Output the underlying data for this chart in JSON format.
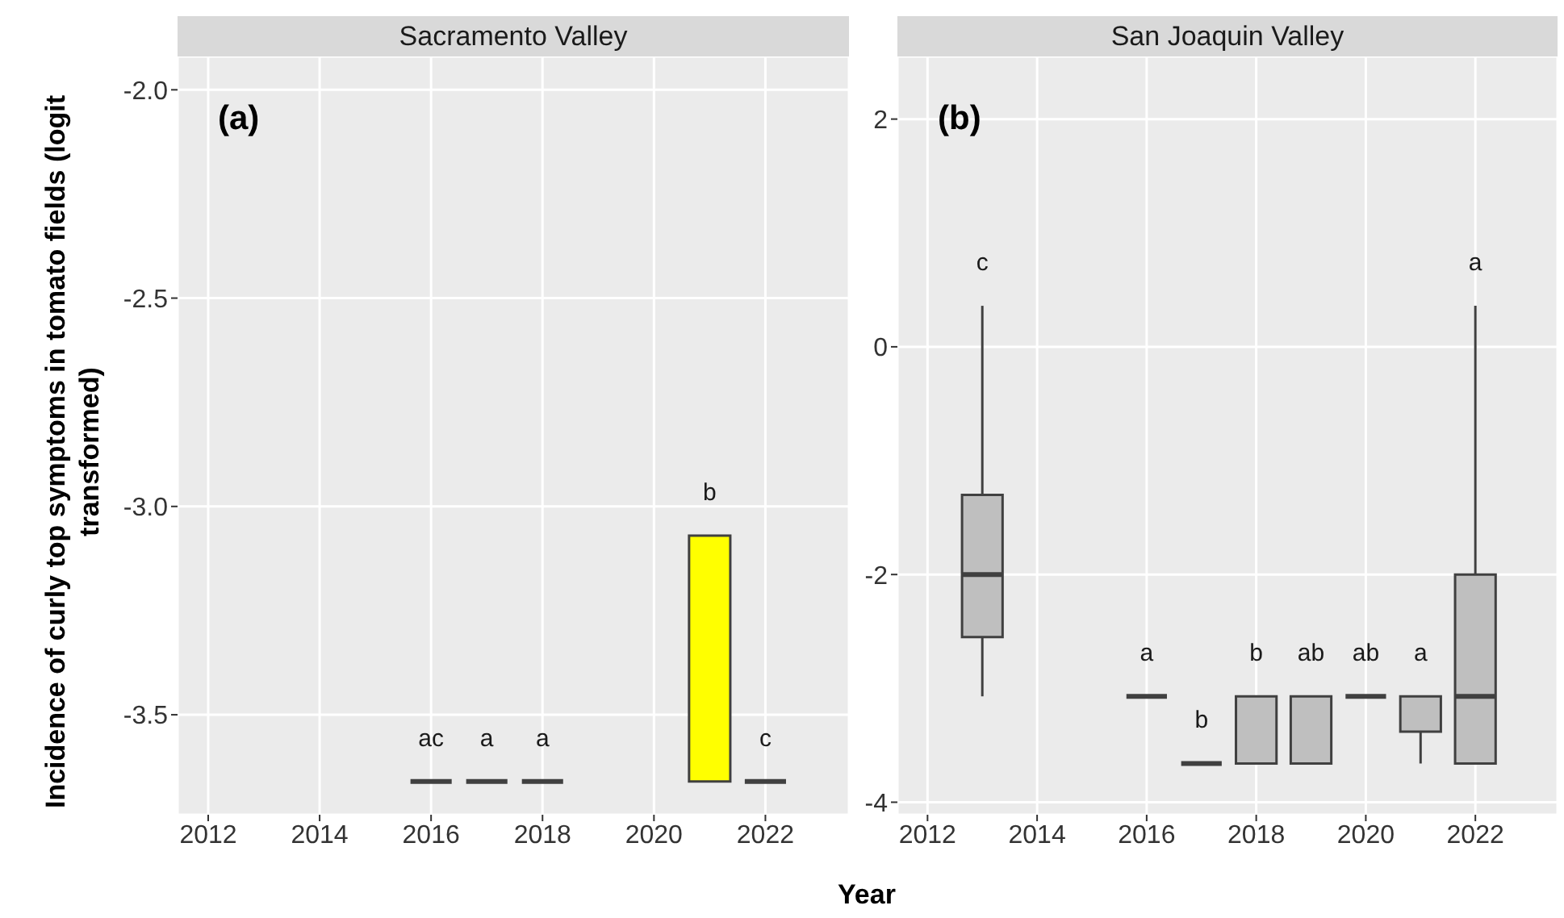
{
  "chart_data": [
    {
      "type": "box",
      "title": "Sacramento Valley",
      "ylabel": "Incidence of curly top symptoms in tomato fields (logit transformed)",
      "xlabel": "Year",
      "x": [
        2016,
        2017,
        2018,
        2021,
        2022
      ],
      "colors": [
        "#404040",
        "#404040",
        "#404040",
        "#ffff00",
        "#404040"
      ],
      "boxes": [
        {
          "low": -3.66,
          "q1": -3.66,
          "median": -3.66,
          "q3": -3.66,
          "high": -3.66
        },
        {
          "low": -3.66,
          "q1": -3.66,
          "median": -3.66,
          "q3": -3.66,
          "high": -3.66
        },
        {
          "low": -3.66,
          "q1": -3.66,
          "median": -3.66,
          "q3": -3.66,
          "high": -3.66
        },
        {
          "low": -3.66,
          "q1": -3.66,
          "median": -3.66,
          "q3": -3.07,
          "high": -3.07
        },
        {
          "low": -3.66,
          "q1": -3.66,
          "median": -3.66,
          "q3": -3.66,
          "high": -3.66
        }
      ],
      "value_labels": [
        "ac",
        "a",
        "a",
        "b",
        "c"
      ],
      "xlim": [
        2011.45,
        2023.5
      ],
      "xticks": [
        2012,
        2014,
        2016,
        2018,
        2020,
        2022
      ],
      "ylim": [
        -3.74,
        -1.92
      ],
      "yticks": [
        -3.5,
        {
          "value": -3,
          "label": "-3.0"
        },
        -2.5,
        {
          "value": -2,
          "label": "-2.0"
        }
      ],
      "grid": true,
      "annotations": [
        "(a)"
      ]
    },
    {
      "type": "box",
      "title": "San Joaquin Valley",
      "x": [
        2013,
        2016,
        2017,
        2018,
        2019,
        2020,
        2021,
        2022
      ],
      "colors": [
        "#bfbfbf",
        "#404040",
        "#404040",
        "#bfbfbf",
        "#bfbfbf",
        "#404040",
        "#bfbfbf",
        "#bfbfbf"
      ],
      "boxes": [
        {
          "low": -3.07,
          "q1": -2.55,
          "median": -2.0,
          "q3": -1.3,
          "high": 0.36
        },
        {
          "low": -3.07,
          "q1": -3.07,
          "median": -3.07,
          "q3": -3.07,
          "high": -3.07
        },
        {
          "low": -3.66,
          "q1": -3.66,
          "median": -3.66,
          "q3": -3.66,
          "high": -3.66
        },
        {
          "low": -3.66,
          "q1": -3.66,
          "median": -3.66,
          "q3": -3.07,
          "high": -3.07
        },
        {
          "low": -3.66,
          "q1": -3.66,
          "median": -3.07,
          "q3": -3.07,
          "high": -3.07
        },
        {
          "low": -3.07,
          "q1": -3.07,
          "median": -3.07,
          "q3": -3.07,
          "high": -3.07
        },
        {
          "low": -3.66,
          "q1": -3.38,
          "median": -3.07,
          "q3": -3.07,
          "high": -3.07
        },
        {
          "low": -3.66,
          "q1": -3.66,
          "median": -3.07,
          "q3": -2.0,
          "high": 0.36
        }
      ],
      "value_labels": [
        "c",
        "a",
        "b",
        "b",
        "ab",
        "ab",
        "a",
        "a"
      ],
      "xlim": [
        2011.45,
        2023.5
      ],
      "xticks": [
        2012,
        2014,
        2016,
        2018,
        2020,
        2022
      ],
      "ylim": [
        -4.11,
        2.55
      ],
      "yticks": [
        -4,
        -2,
        0,
        2
      ],
      "grid": true,
      "annotations": [
        "(b)"
      ]
    }
  ]
}
